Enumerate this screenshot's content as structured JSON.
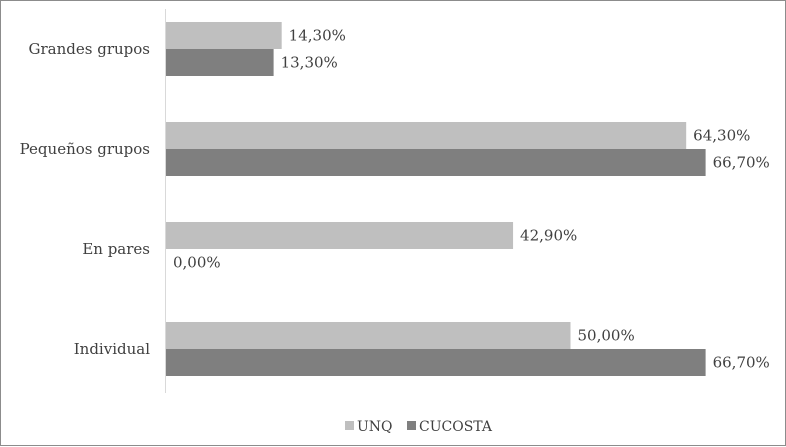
{
  "chart_data": {
    "type": "bar",
    "orientation": "horizontal",
    "title": "",
    "xlabel": "",
    "ylabel": "",
    "categories": [
      "Grandes grupos",
      "Pequeños grupos",
      "En pares",
      "Individual"
    ],
    "series": [
      {
        "name": "UNQ",
        "color": "#bfbfbf",
        "values": [
          14.3,
          64.3,
          42.9,
          50.0
        ],
        "labels": [
          "14,30%",
          "64,30%",
          "42,90%",
          "50,00%"
        ]
      },
      {
        "name": "CUCOSTA",
        "color": "#7f7f7f",
        "values": [
          13.3,
          66.7,
          0.0,
          66.7
        ],
        "labels": [
          "13,30%",
          "66,70%",
          "0,00%",
          "66,70%"
        ]
      }
    ],
    "xlim": [
      0,
      80
    ],
    "grid": false,
    "legend": {
      "position": "bottom",
      "entries": [
        "UNQ",
        "CUCOSTA"
      ]
    }
  }
}
